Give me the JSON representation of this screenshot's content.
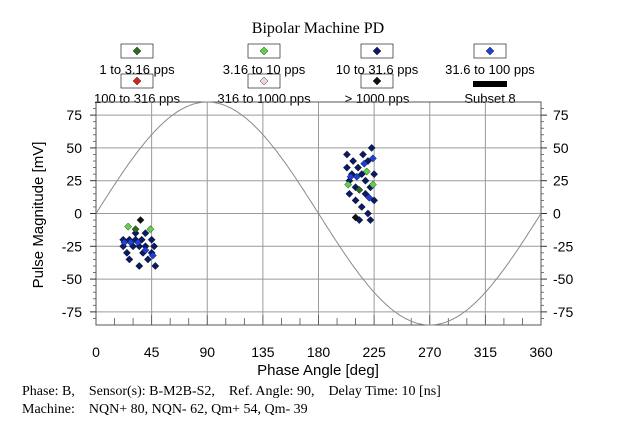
{
  "chart_data": {
    "type": "scatter",
    "title": "Bipolar Machine PD",
    "xlabel": "Phase Angle [deg]",
    "ylabel": "Pulse Magnitude [mV]",
    "xlim": [
      0,
      360
    ],
    "ylim": [
      -85,
      85
    ],
    "xticks": [
      0,
      45,
      90,
      135,
      180,
      225,
      270,
      315,
      360
    ],
    "yticks": [
      75,
      50,
      25,
      0,
      -25,
      -50,
      -75
    ],
    "grid": true,
    "reference_sine": {
      "amplitude_mv": 85,
      "period_deg": 360
    },
    "legend": [
      {
        "label": "1 to 3.16 pps",
        "color": "#2e6b1e",
        "marker": "diamond"
      },
      {
        "label": "3.16 to 10 pps",
        "color": "#5fd24a",
        "marker": "diamond"
      },
      {
        "label": "10 to 31.6 pps",
        "color": "#0a1a66",
        "marker": "diamond"
      },
      {
        "label": "31.6 to 100 pps",
        "color": "#1f3fd8",
        "marker": "diamond"
      },
      {
        "label": "100 to 316 pps",
        "color": "#d42020",
        "marker": "diamond"
      },
      {
        "label": "316 to 1000 pps",
        "color": "#f3d8d8",
        "marker": "diamond"
      },
      {
        "label": "> 1000 pps",
        "color": "#111111",
        "marker": "diamond"
      },
      {
        "label": "Subset 8",
        "color": "#000000",
        "marker": "bar"
      }
    ],
    "series": [
      {
        "name": "10 to 31.6 pps",
        "color": "#0a1a66",
        "points": [
          [
            22,
            -20
          ],
          [
            22,
            -25
          ],
          [
            25,
            -30
          ],
          [
            27,
            -20
          ],
          [
            27,
            -35
          ],
          [
            30,
            -25
          ],
          [
            32,
            -15
          ],
          [
            32,
            -20
          ],
          [
            35,
            -25
          ],
          [
            35,
            -40
          ],
          [
            37,
            -20
          ],
          [
            38,
            -30
          ],
          [
            40,
            -15
          ],
          [
            40,
            -25
          ],
          [
            42,
            -35
          ],
          [
            45,
            -20
          ],
          [
            45,
            -30
          ],
          [
            47,
            -25
          ],
          [
            48,
            -40
          ],
          [
            203,
            35
          ],
          [
            203,
            45
          ],
          [
            205,
            25
          ],
          [
            205,
            15
          ],
          [
            207,
            30
          ],
          [
            208,
            40
          ],
          [
            210,
            20
          ],
          [
            210,
            10
          ],
          [
            212,
            35
          ],
          [
            213,
            -5
          ],
          [
            215,
            30
          ],
          [
            215,
            5
          ],
          [
            216,
            45
          ],
          [
            218,
            25
          ],
          [
            218,
            15
          ],
          [
            220,
            40
          ],
          [
            220,
            0
          ],
          [
            222,
            20
          ],
          [
            222,
            -5
          ],
          [
            223,
            50
          ],
          [
            225,
            30
          ],
          [
            225,
            10
          ]
        ]
      },
      {
        "name": "31.6 to 100 pps",
        "color": "#1f3fd8",
        "points": [
          [
            23,
            -22
          ],
          [
            28,
            -22
          ],
          [
            34,
            -22
          ],
          [
            40,
            -28
          ],
          [
            46,
            -32
          ],
          [
            206,
            28
          ],
          [
            211,
            28
          ],
          [
            217,
            38
          ],
          [
            221,
            12
          ],
          [
            224,
            42
          ]
        ]
      },
      {
        "name": "3.16 to 10 pps",
        "color": "#5fd24a",
        "points": [
          [
            26,
            -10
          ],
          [
            44,
            -12
          ],
          [
            204,
            22
          ],
          [
            219,
            32
          ],
          [
            224,
            22
          ]
        ]
      },
      {
        "name": "1 to 3.16 pps",
        "color": "#2e6b1e",
        "points": [
          [
            32,
            -12
          ],
          [
            213,
            18
          ]
        ]
      },
      {
        "name": "> 1000 pps",
        "color": "#111111",
        "points": [
          [
            36,
            -5
          ],
          [
            210,
            -3
          ]
        ]
      }
    ]
  },
  "footer": {
    "line1": "Phase: B,    Sensor(s): B-M2B-S2,    Ref. Angle: 90,    Delay Time: 10 [ns]",
    "line2": "Machine:    NQN+ 80, NQN- 62, Qm+ 54, Qm- 39"
  }
}
